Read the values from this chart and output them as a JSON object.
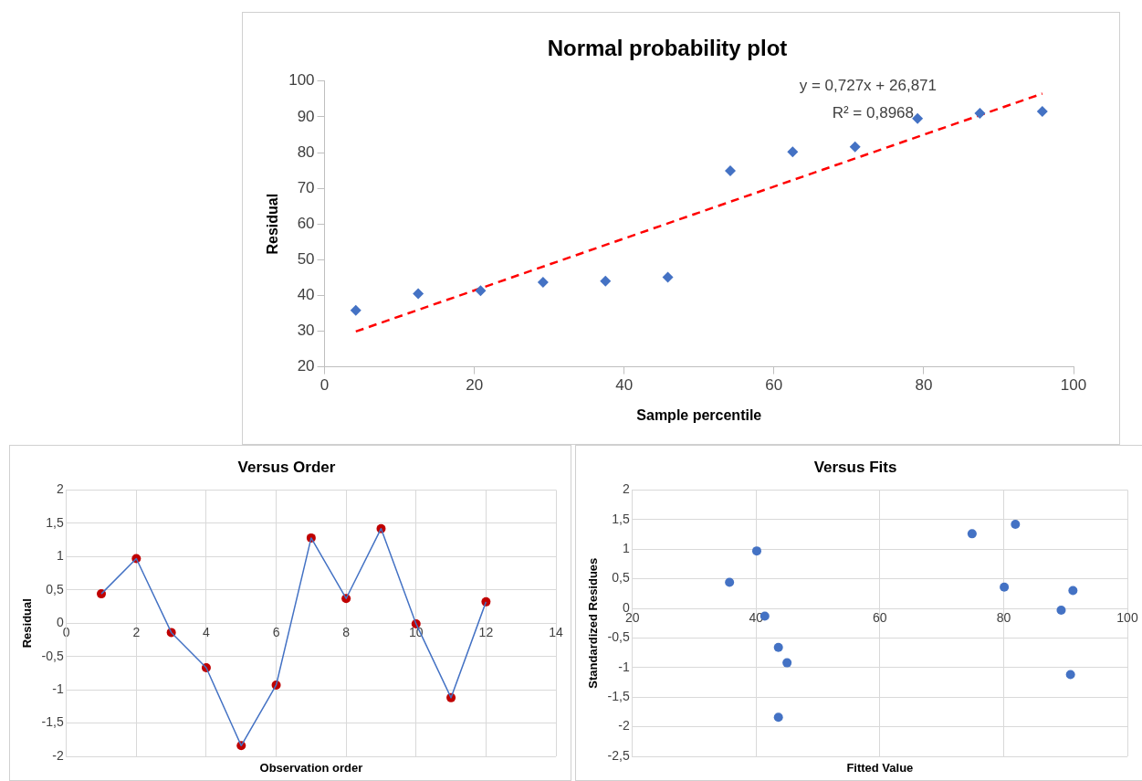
{
  "chart_data": [
    {
      "type": "scatter",
      "title": "Normal probability plot",
      "xlabel": "Sample percentile",
      "ylabel": "Residual",
      "x": [
        4.17,
        12.5,
        20.83,
        29.17,
        37.5,
        45.83,
        54.17,
        62.5,
        70.83,
        79.17,
        87.5,
        95.83
      ],
      "series": [
        {
          "color": "#4472c4",
          "marker": "diamond",
          "values": [
            35.8,
            40.5,
            41.3,
            43.7,
            44.0,
            45.1,
            74.9,
            80.2,
            81.6,
            89.5,
            91.0,
            91.5
          ]
        },
        {
          "type": "line",
          "color": "#ff0000",
          "line_style": "dashed",
          "marker": "none",
          "x": [
            4.17,
            95.83
          ],
          "values": [
            29.9,
            96.5
          ]
        }
      ],
      "xlim": [
        0,
        100
      ],
      "ylim": [
        20,
        100
      ],
      "xticks": [
        0,
        20,
        40,
        60,
        80,
        100
      ],
      "yticks": [
        20,
        30,
        40,
        50,
        60,
        70,
        80,
        90,
        100
      ],
      "grid": false,
      "annotations": [
        "y = 0,727x + 26,871",
        "R² = 0,8968"
      ]
    },
    {
      "type": "line",
      "title": "Versus Order",
      "xlabel": "Observation order",
      "ylabel": "Residual",
      "x": [
        1,
        2,
        3,
        4,
        5,
        6,
        7,
        8,
        9,
        10,
        11,
        12
      ],
      "series": [
        {
          "color": "#4472c4",
          "marker": "none",
          "values": [
            0.44,
            0.97,
            -0.14,
            -0.67,
            -1.84,
            -0.93,
            1.28,
            0.37,
            1.42,
            -0.01,
            -1.12,
            0.32
          ]
        },
        {
          "type": "scatter",
          "color": "#c00000",
          "marker": "circle",
          "values": [
            0.44,
            0.97,
            -0.14,
            -0.67,
            -1.84,
            -0.93,
            1.28,
            0.37,
            1.42,
            -0.01,
            -1.12,
            0.32
          ]
        }
      ],
      "xlim": [
        0,
        14
      ],
      "ylim": [
        -2,
        2
      ],
      "xticks": [
        0,
        2,
        4,
        6,
        8,
        10,
        12,
        14
      ],
      "yticks": [
        {
          "value": -2,
          "label": "-2"
        },
        {
          "value": -1.5,
          "label": "-1,5"
        },
        {
          "value": -1,
          "label": "-1"
        },
        {
          "value": -0.5,
          "label": "-0,5"
        },
        {
          "value": 0,
          "label": "0"
        },
        {
          "value": 0.5,
          "label": "0,5"
        },
        {
          "value": 1,
          "label": "1"
        },
        {
          "value": 1.5,
          "label": "1,5"
        },
        {
          "value": 2,
          "label": "2"
        }
      ],
      "grid": true
    },
    {
      "type": "scatter",
      "title": "Versus Fits",
      "xlabel": "Fitted Value",
      "ylabel": "Standardized Residues",
      "x": [
        35.7,
        40.1,
        41.4,
        43.6,
        45.0,
        43.6,
        74.9,
        80.1,
        81.9,
        89.3,
        90.8,
        91.2
      ],
      "series": [
        {
          "color": "#4472c4",
          "marker": "circle",
          "values": [
            0.44,
            0.97,
            -0.13,
            -0.66,
            -0.92,
            -1.84,
            1.26,
            0.36,
            1.42,
            -0.03,
            -1.12,
            0.3
          ]
        }
      ],
      "xlim": [
        20,
        100
      ],
      "ylim": [
        -2.5,
        2
      ],
      "xticks": [
        20,
        40,
        60,
        80,
        100
      ],
      "yticks": [
        {
          "value": -2.5,
          "label": "-2,5"
        },
        {
          "value": -2,
          "label": "-2"
        },
        {
          "value": -1.5,
          "label": "-1,5"
        },
        {
          "value": -1,
          "label": "-1"
        },
        {
          "value": -0.5,
          "label": "-0,5"
        },
        {
          "value": 0,
          "label": "0"
        },
        {
          "value": 0.5,
          "label": "0,5"
        },
        {
          "value": 1,
          "label": "1"
        },
        {
          "value": 1.5,
          "label": "1,5"
        },
        {
          "value": 2,
          "label": "2"
        }
      ],
      "grid": true
    }
  ]
}
